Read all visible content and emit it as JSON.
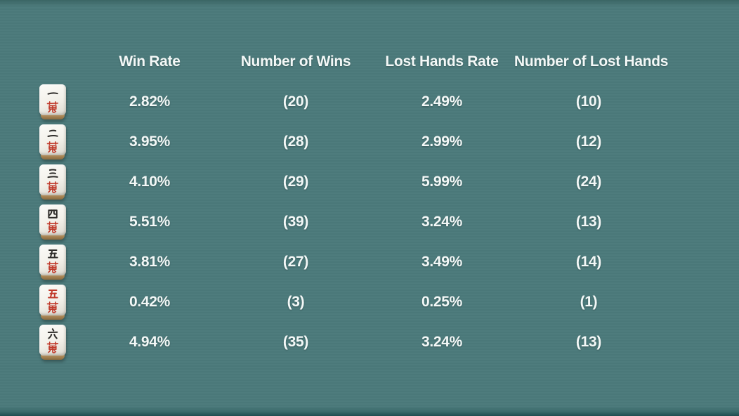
{
  "theme": {
    "background": "#4b7a7b",
    "edge_band": "#35625f",
    "text_color": "#f3f8f7",
    "tile_face": "#f2f0e9",
    "tile_base": "#bd9763",
    "tile_black_char": "#2e2c29",
    "tile_red_char": "#c03a2b"
  },
  "table": {
    "headers": {
      "win_rate": "Win Rate",
      "num_wins": "Number of Wins",
      "lost_rate": "Lost Hands Rate",
      "num_lost": "Number of Lost Hands"
    },
    "rows": [
      {
        "tile_id": "1-man",
        "tile_name": "1 man tile (ichi-man)",
        "win_rate": "2.82%",
        "num_wins": "(20)",
        "lost_rate": "2.49%",
        "num_lost": "(10)"
      },
      {
        "tile_id": "2-man",
        "tile_name": "2 man tile (ni-man)",
        "win_rate": "3.95%",
        "num_wins": "(28)",
        "lost_rate": "2.99%",
        "num_lost": "(12)"
      },
      {
        "tile_id": "3-man",
        "tile_name": "3 man tile (san-man)",
        "win_rate": "4.10%",
        "num_wins": "(29)",
        "lost_rate": "5.99%",
        "num_lost": "(24)"
      },
      {
        "tile_id": "4-man",
        "tile_name": "4 man tile (yon-man)",
        "win_rate": "5.51%",
        "num_wins": "(39)",
        "lost_rate": "3.24%",
        "num_lost": "(13)"
      },
      {
        "tile_id": "5-man",
        "tile_name": "5 man tile (go-man)",
        "win_rate": "3.81%",
        "num_wins": "(27)",
        "lost_rate": "3.49%",
        "num_lost": "(14)"
      },
      {
        "tile_id": "red-5-man",
        "tile_name": "red 5 man tile (aka go-man)",
        "win_rate": "0.42%",
        "num_wins": "(3)",
        "lost_rate": "0.25%",
        "num_lost": "(1)"
      },
      {
        "tile_id": "6-man",
        "tile_name": "6 man tile (roku-man)",
        "win_rate": "4.94%",
        "num_wins": "(35)",
        "lost_rate": "3.24%",
        "num_lost": "(13)"
      }
    ]
  }
}
